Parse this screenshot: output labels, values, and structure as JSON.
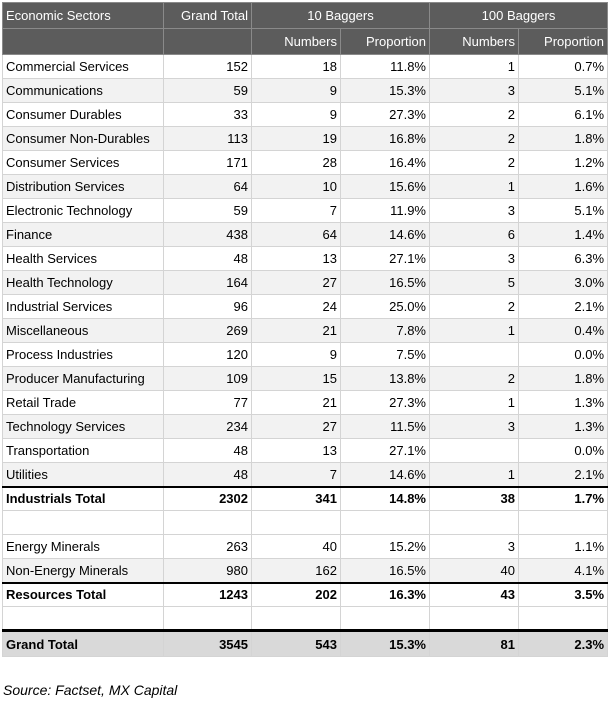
{
  "header": {
    "sector": "Economic Sectors",
    "grand_total": "Grand Total",
    "ten_baggers": "10 Baggers",
    "hundred_baggers": "100 Baggers",
    "numbers": "Numbers",
    "proportion": "Proportion"
  },
  "industrial_rows": [
    {
      "sector": "Commercial Services",
      "total": "152",
      "n10": "18",
      "p10": "11.8%",
      "n100": "1",
      "p100": "0.7%"
    },
    {
      "sector": "Communications",
      "total": "59",
      "n10": "9",
      "p10": "15.3%",
      "n100": "3",
      "p100": "5.1%"
    },
    {
      "sector": "Consumer Durables",
      "total": "33",
      "n10": "9",
      "p10": "27.3%",
      "n100": "2",
      "p100": "6.1%"
    },
    {
      "sector": "Consumer Non-Durables",
      "total": "113",
      "n10": "19",
      "p10": "16.8%",
      "n100": "2",
      "p100": "1.8%"
    },
    {
      "sector": "Consumer Services",
      "total": "171",
      "n10": "28",
      "p10": "16.4%",
      "n100": "2",
      "p100": "1.2%"
    },
    {
      "sector": "Distribution Services",
      "total": "64",
      "n10": "10",
      "p10": "15.6%",
      "n100": "1",
      "p100": "1.6%"
    },
    {
      "sector": "Electronic Technology",
      "total": "59",
      "n10": "7",
      "p10": "11.9%",
      "n100": "3",
      "p100": "5.1%"
    },
    {
      "sector": "Finance",
      "total": "438",
      "n10": "64",
      "p10": "14.6%",
      "n100": "6",
      "p100": "1.4%"
    },
    {
      "sector": "Health Services",
      "total": "48",
      "n10": "13",
      "p10": "27.1%",
      "n100": "3",
      "p100": "6.3%"
    },
    {
      "sector": "Health Technology",
      "total": "164",
      "n10": "27",
      "p10": "16.5%",
      "n100": "5",
      "p100": "3.0%"
    },
    {
      "sector": "Industrial Services",
      "total": "96",
      "n10": "24",
      "p10": "25.0%",
      "n100": "2",
      "p100": "2.1%"
    },
    {
      "sector": "Miscellaneous",
      "total": "269",
      "n10": "21",
      "p10": "7.8%",
      "n100": "1",
      "p100": "0.4%"
    },
    {
      "sector": "Process Industries",
      "total": "120",
      "n10": "9",
      "p10": "7.5%",
      "n100": "",
      "p100": "0.0%"
    },
    {
      "sector": "Producer Manufacturing",
      "total": "109",
      "n10": "15",
      "p10": "13.8%",
      "n100": "2",
      "p100": "1.8%"
    },
    {
      "sector": "Retail Trade",
      "total": "77",
      "n10": "21",
      "p10": "27.3%",
      "n100": "1",
      "p100": "1.3%"
    },
    {
      "sector": "Technology Services",
      "total": "234",
      "n10": "27",
      "p10": "11.5%",
      "n100": "3",
      "p100": "1.3%"
    },
    {
      "sector": "Transportation",
      "total": "48",
      "n10": "13",
      "p10": "27.1%",
      "n100": "",
      "p100": "0.0%"
    },
    {
      "sector": "Utilities",
      "total": "48",
      "n10": "7",
      "p10": "14.6%",
      "n100": "1",
      "p100": "2.1%"
    }
  ],
  "industrials_total": {
    "sector": "Industrials Total",
    "total": "2302",
    "n10": "341",
    "p10": "14.8%",
    "n100": "38",
    "p100": "1.7%"
  },
  "resource_rows": [
    {
      "sector": "Energy Minerals",
      "total": "263",
      "n10": "40",
      "p10": "15.2%",
      "n100": "3",
      "p100": "1.1%"
    },
    {
      "sector": "Non-Energy Minerals",
      "total": "980",
      "n10": "162",
      "p10": "16.5%",
      "n100": "40",
      "p100": "4.1%"
    }
  ],
  "resources_total": {
    "sector": "Resources Total",
    "total": "1243",
    "n10": "202",
    "p10": "16.3%",
    "n100": "43",
    "p100": "3.5%"
  },
  "grand_total": {
    "sector": "Grand Total",
    "total": "3545",
    "n10": "543",
    "p10": "15.3%",
    "n100": "81",
    "p100": "2.3%"
  },
  "source": "Source: Factset, MX Capital"
}
